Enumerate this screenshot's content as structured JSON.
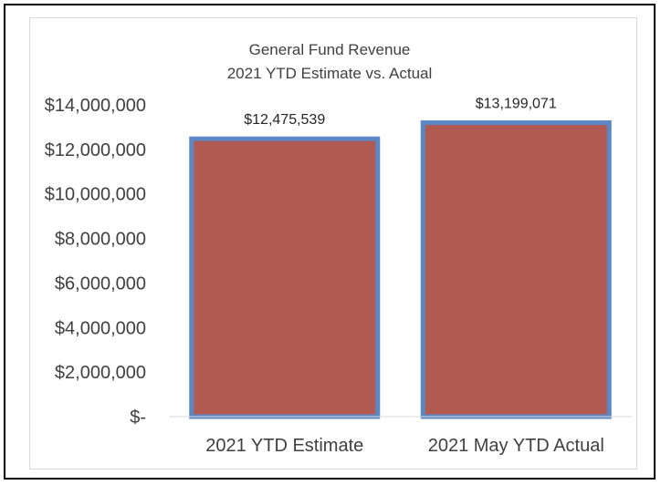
{
  "chart_data": {
    "type": "bar",
    "title": "General Fund Revenue",
    "subtitle": "2021 YTD Estimate vs. Actual",
    "categories": [
      "2021 YTD Estimate",
      "2021 May YTD Actual"
    ],
    "values": [
      12475539,
      13199071
    ],
    "data_labels": [
      "$12,475,539",
      "$13,199,071"
    ],
    "ylim": [
      0,
      14000000
    ],
    "y_ticks": [
      0,
      2000000,
      4000000,
      6000000,
      8000000,
      10000000,
      12000000,
      14000000
    ],
    "y_tick_labels": [
      "$-",
      "$2,000,000",
      "$4,000,000",
      "$6,000,000",
      "$8,000,000",
      "$10,000,000",
      "$12,000,000",
      "$14,000,000"
    ],
    "xlabel": "",
    "ylabel": "",
    "grid": false,
    "legend": "none",
    "colors": {
      "bar_fill": "#b05a52",
      "bar_border": "#5b87c5",
      "axis_line": "#d9d9d9",
      "text": "#404040"
    }
  }
}
